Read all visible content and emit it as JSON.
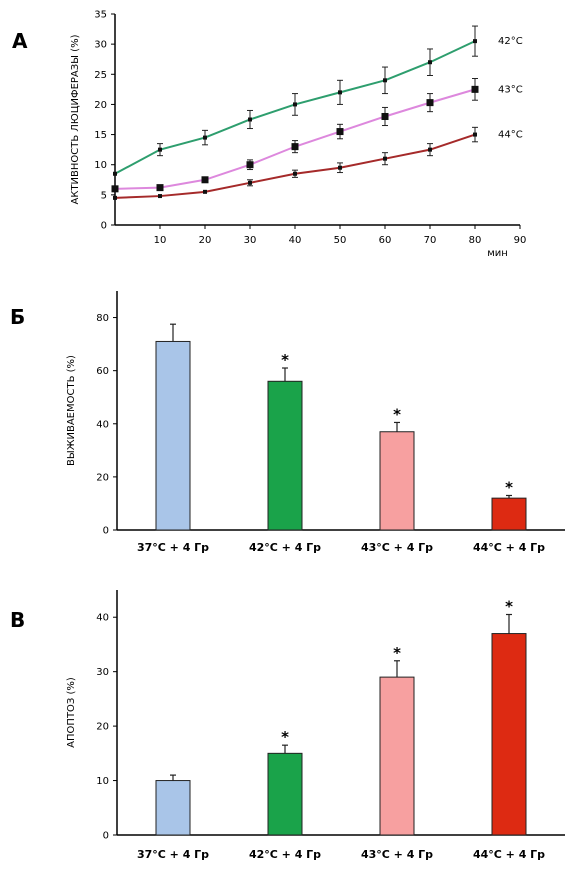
{
  "panels": {
    "a": "А",
    "b": "Б",
    "c": "В"
  },
  "chart_data": [
    {
      "type": "line",
      "ylabel": "АКТИВНОСТЬ  ЛЮЦИФЕРАЗЫ  (%)",
      "xlabel": "мин",
      "xlim": [
        0,
        90
      ],
      "ylim": [
        0,
        35
      ],
      "x_ticks": [
        10,
        20,
        30,
        40,
        50,
        60,
        70,
        80,
        90
      ],
      "y_ticks": [
        0,
        5,
        10,
        15,
        20,
        25,
        30,
        35
      ],
      "x": [
        0,
        10,
        20,
        30,
        40,
        50,
        60,
        70,
        80
      ],
      "series": [
        {
          "name": "42°C",
          "color": "#2e9e6e",
          "marker": "plus",
          "values": [
            8.5,
            12.5,
            14.5,
            17.5,
            20,
            22,
            24,
            27,
            30.5
          ],
          "errors": [
            0,
            1,
            1.2,
            1.5,
            1.8,
            2,
            2.2,
            2.2,
            2.5
          ]
        },
        {
          "name": "43°C",
          "color": "#dd88dd",
          "marker": "square",
          "values": [
            6,
            6.2,
            7.5,
            10,
            13,
            15.5,
            18,
            20.3,
            22.5
          ],
          "errors": [
            0,
            0,
            0,
            0.8,
            1,
            1.2,
            1.5,
            1.5,
            1.8
          ]
        },
        {
          "name": "44°C",
          "color": "#a52a2a",
          "marker": "plus",
          "values": [
            4.5,
            4.8,
            5.5,
            7,
            8.5,
            9.5,
            11,
            12.5,
            15
          ],
          "errors": [
            0,
            0,
            0,
            0.5,
            0.6,
            0.8,
            1,
            1,
            1.2
          ]
        }
      ]
    },
    {
      "type": "bar",
      "ylabel": "ВЫЖИВАЕМОСТЬ  (%)",
      "ylim": [
        0,
        90
      ],
      "y_ticks": [
        0,
        20,
        40,
        60,
        80
      ],
      "categories": [
        "37°С + 4 Гр",
        "42°С + 4 Гр",
        "43°С + 4 Гр",
        "44°С + 4 Гр"
      ],
      "values": [
        71,
        56,
        37,
        12
      ],
      "errors": [
        6.5,
        5,
        3.5,
        1
      ],
      "significance": [
        "",
        "*",
        "*",
        "*"
      ],
      "colors": [
        "#a9c5e8",
        "#1aa34a",
        "#f7a0a0",
        "#dd2a12"
      ]
    },
    {
      "type": "bar",
      "ylabel": "АПОПТОЗ  (%)",
      "ylim": [
        0,
        45
      ],
      "y_ticks": [
        0,
        10,
        20,
        30,
        40
      ],
      "categories": [
        "37°С + 4 Гр",
        "42°С + 4 Гр",
        "43°С + 4 Гр",
        "44°С + 4 Гр"
      ],
      "values": [
        10,
        15,
        29,
        37
      ],
      "errors": [
        1,
        1.5,
        3,
        3.5
      ],
      "significance": [
        "",
        "*",
        "*",
        "*"
      ],
      "colors": [
        "#a9c5e8",
        "#1aa34a",
        "#f7a0a0",
        "#dd2a12"
      ]
    }
  ]
}
